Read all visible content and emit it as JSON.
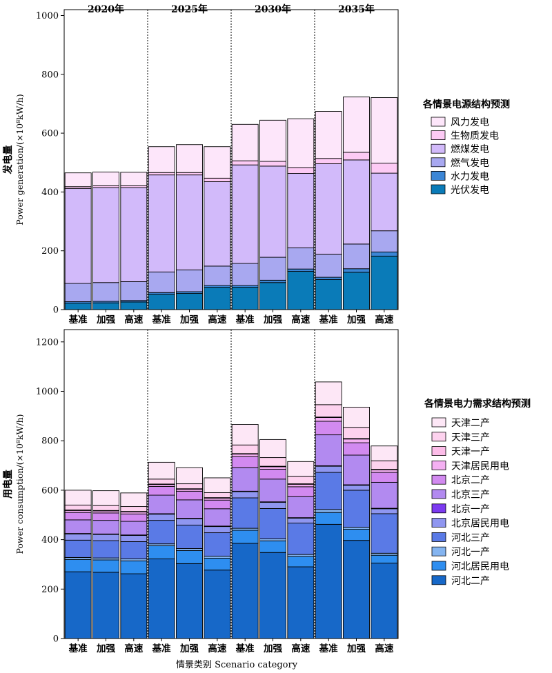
{
  "chart_data": [
    {
      "type": "stacked-bar",
      "ylabel": "发电量",
      "ylabel_en": "Power generation/(×10⁸kW/h)",
      "ylim": [
        0,
        1000
      ],
      "yticks": [
        0,
        200,
        400,
        600,
        800,
        1000
      ],
      "groups": [
        "2020年",
        "2025年",
        "2030年",
        "2035年"
      ],
      "categories": [
        "基准",
        "加强",
        "高速",
        "基准",
        "加强",
        "高速",
        "基准",
        "加强",
        "高速",
        "基准",
        "加强",
        "高速"
      ],
      "legend_title": "各情景电源结构预测",
      "legend_position": "right",
      "series": [
        {
          "name": "光伏发电",
          "color": "#0a7bb8",
          "values": [
            22,
            23,
            26,
            52,
            55,
            76,
            76,
            92,
            130,
            102,
            127,
            182
          ]
        },
        {
          "name": "水力发电",
          "color": "#3b86d6",
          "values": [
            5,
            5,
            5,
            6,
            6,
            6,
            6,
            8,
            8,
            8,
            12,
            14
          ]
        },
        {
          "name": "燃气发电",
          "color": "#a8a8f0",
          "values": [
            62,
            64,
            64,
            70,
            74,
            66,
            75,
            78,
            72,
            78,
            84,
            72
          ]
        },
        {
          "name": "燃煤发电",
          "color": "#d2bafa",
          "values": [
            323,
            323,
            320,
            330,
            323,
            287,
            335,
            310,
            253,
            308,
            286,
            196
          ]
        },
        {
          "name": "生物质发电",
          "color": "#fccaf4",
          "values": [
            6,
            6,
            6,
            8,
            8,
            12,
            14,
            16,
            20,
            18,
            26,
            34
          ]
        },
        {
          "name": "风力发电",
          "color": "#fde6fa",
          "values": [
            47,
            47,
            46,
            88,
            95,
            107,
            124,
            140,
            166,
            160,
            188,
            223
          ]
        }
      ]
    },
    {
      "type": "stacked-bar",
      "ylabel": "用电量",
      "ylabel_en": "Power consumption/(×10⁸kW/h)",
      "xlabel": "情景类别 Scenario category",
      "ylim": [
        0,
        1250
      ],
      "yticks": [
        0,
        200,
        400,
        600,
        800,
        1000,
        1200
      ],
      "groups": [
        "2020年",
        "2025年",
        "2030年",
        "2035年"
      ],
      "categories": [
        "基准",
        "加强",
        "高速",
        "基准",
        "加强",
        "高速",
        "基准",
        "加强",
        "高速",
        "基准",
        "加强",
        "高速"
      ],
      "legend_title": "各情景电力需求结构预测",
      "legend_position": "right",
      "series": [
        {
          "name": "河北二产",
          "color": "#1768c8",
          "values": [
            270,
            268,
            262,
            322,
            303,
            277,
            385,
            348,
            290,
            462,
            397,
            305
          ]
        },
        {
          "name": "河北居民用电",
          "color": "#2e8ef0",
          "values": [
            50,
            50,
            52,
            53,
            53,
            48,
            53,
            47,
            42,
            48,
            45,
            32
          ]
        },
        {
          "name": "河北一产",
          "color": "#84b4f0",
          "values": [
            8,
            8,
            8,
            8,
            8,
            8,
            8,
            8,
            8,
            12,
            8,
            8
          ]
        },
        {
          "name": "河北三产",
          "color": "#5a7ae6",
          "values": [
            70,
            70,
            70,
            95,
            95,
            95,
            123,
            123,
            127,
            150,
            150,
            160
          ]
        },
        {
          "name": "北京居民用电",
          "color": "#8f96f0",
          "values": [
            25,
            25,
            25,
            25,
            25,
            25,
            25,
            25,
            20,
            25,
            20,
            20
          ]
        },
        {
          "name": "北京一产",
          "color": "#7c3af0",
          "values": [
            2,
            2,
            2,
            2,
            2,
            2,
            2,
            2,
            2,
            2,
            2,
            2
          ]
        },
        {
          "name": "北京三产",
          "color": "#b28af0",
          "values": [
            55,
            55,
            55,
            75,
            75,
            70,
            95,
            92,
            85,
            125,
            120,
            105
          ]
        },
        {
          "name": "北京二产",
          "color": "#d28af0",
          "values": [
            30,
            30,
            30,
            35,
            35,
            35,
            45,
            40,
            40,
            55,
            50,
            40
          ]
        },
        {
          "name": "天津居民用电",
          "color": "#f4b0f2",
          "values": [
            8,
            8,
            8,
            8,
            8,
            8,
            10,
            10,
            10,
            15,
            15,
            10
          ]
        },
        {
          "name": "天津一产",
          "color": "#fcbce8",
          "values": [
            2,
            2,
            2,
            2,
            2,
            2,
            2,
            2,
            2,
            2,
            2,
            2
          ]
        },
        {
          "name": "天津三产",
          "color": "#fdd2ee",
          "values": [
            20,
            20,
            20,
            20,
            20,
            20,
            35,
            35,
            30,
            50,
            45,
            35
          ]
        },
        {
          "name": "天津二产",
          "color": "#fde7f6",
          "values": [
            60,
            60,
            55,
            68,
            65,
            60,
            83,
            73,
            60,
            92,
            82,
            60
          ]
        }
      ]
    }
  ]
}
